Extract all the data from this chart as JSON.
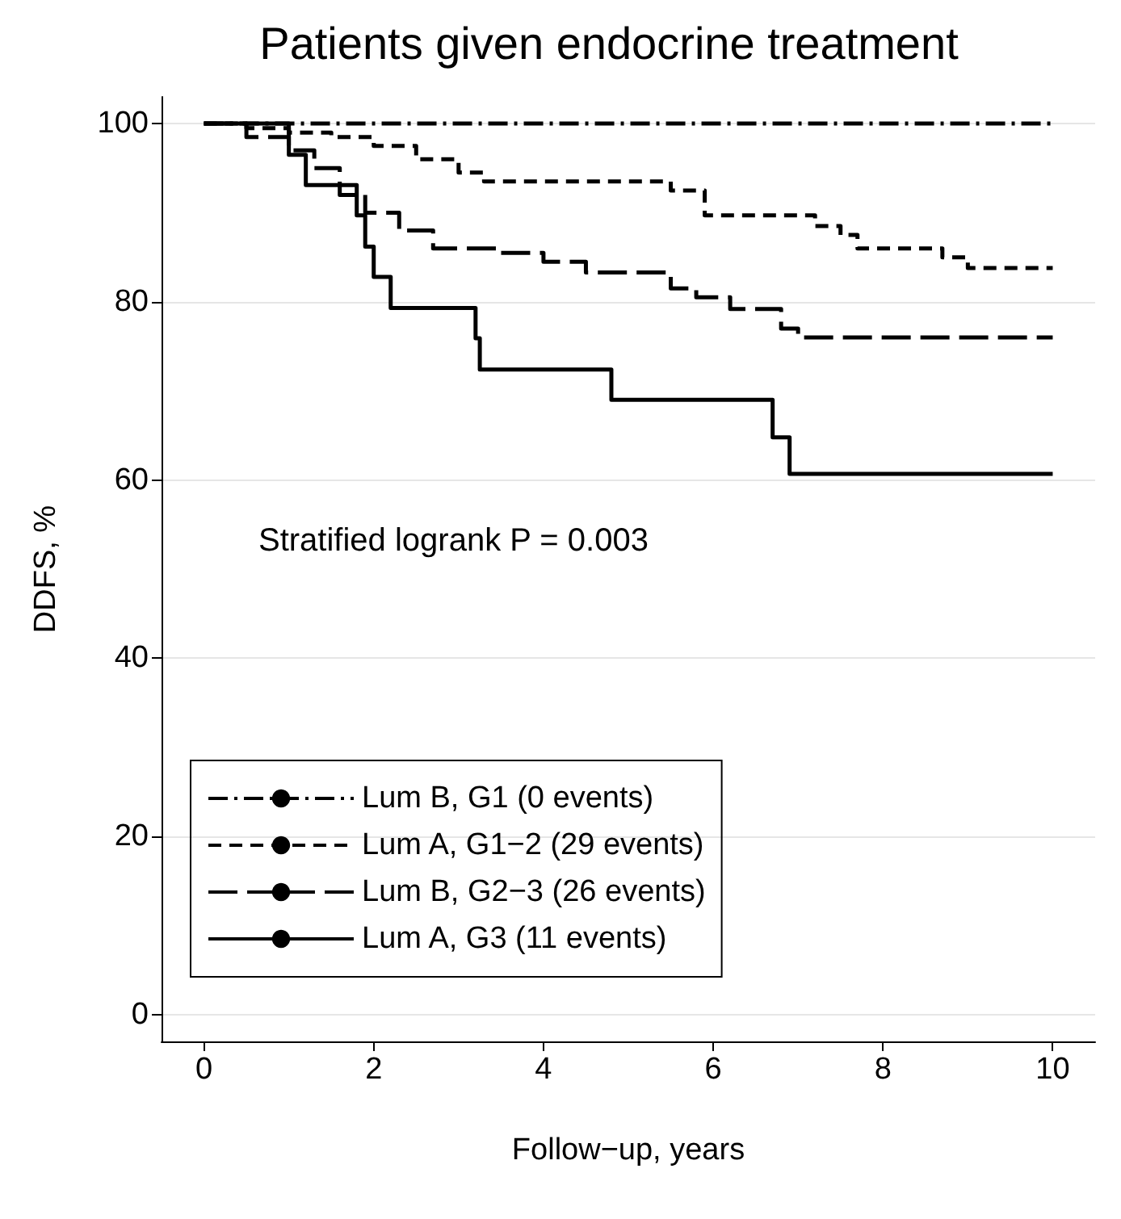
{
  "chart_data": {
    "type": "step",
    "title": "Patients given endocrine treatment",
    "xlabel": "Follow−up, years",
    "ylabel": "DDFS, %",
    "xlim": [
      -0.5,
      10.5
    ],
    "xticks": [
      0,
      2,
      4,
      6,
      8,
      10
    ],
    "ylim": [
      -3,
      103
    ],
    "yticks": [
      0,
      20,
      40,
      60,
      80,
      100
    ],
    "grid": "y",
    "legend": "bottom left",
    "marker": "none",
    "annotations": [
      "Stratified logrank P = 0.003"
    ],
    "series": [
      {
        "name": "Lum B, G1 (0 events)",
        "color": "#000000",
        "line_style": "dashdot",
        "x": [
          0,
          10
        ],
        "values": [
          100,
          100
        ]
      },
      {
        "name": "Lum A, G1−2 (29 events)",
        "color": "#000000",
        "line_style": "dashed",
        "x": [
          0,
          0.5,
          1.0,
          1.5,
          2.0,
          2.5,
          3.0,
          3.3,
          5.5,
          5.9,
          7.2,
          7.5,
          7.7,
          8.7,
          9.0,
          10
        ],
        "values": [
          100,
          99.5,
          99,
          98.5,
          97.5,
          96,
          94.5,
          93.5,
          92.5,
          89.7,
          88.5,
          87.5,
          86,
          85,
          83.8,
          83.8
        ]
      },
      {
        "name": "Lum B, G2−3 (26 events)",
        "color": "#000000",
        "line_style": "longdash",
        "x": [
          0,
          0.5,
          1.0,
          1.3,
          1.6,
          1.9,
          2.3,
          2.7,
          3.5,
          4.0,
          4.5,
          5.5,
          5.8,
          6.2,
          6.8,
          7.0,
          10
        ],
        "values": [
          100,
          98.5,
          97,
          95,
          92,
          90,
          88,
          86,
          85.5,
          84.5,
          83.3,
          81.5,
          80.5,
          79.2,
          77,
          76,
          76
        ]
      },
      {
        "name": "Lum A, G3 (11 events)",
        "color": "#000000",
        "line_style": "solid",
        "x": [
          0,
          1.0,
          1.2,
          1.8,
          1.9,
          2.0,
          2.2,
          3.2,
          3.25,
          4.8,
          6.7,
          6.9,
          10
        ],
        "values": [
          100,
          96.5,
          93.1,
          89.7,
          86.2,
          82.8,
          79.3,
          75.9,
          72.4,
          69.0,
          64.8,
          60.7,
          60.7
        ]
      }
    ]
  }
}
